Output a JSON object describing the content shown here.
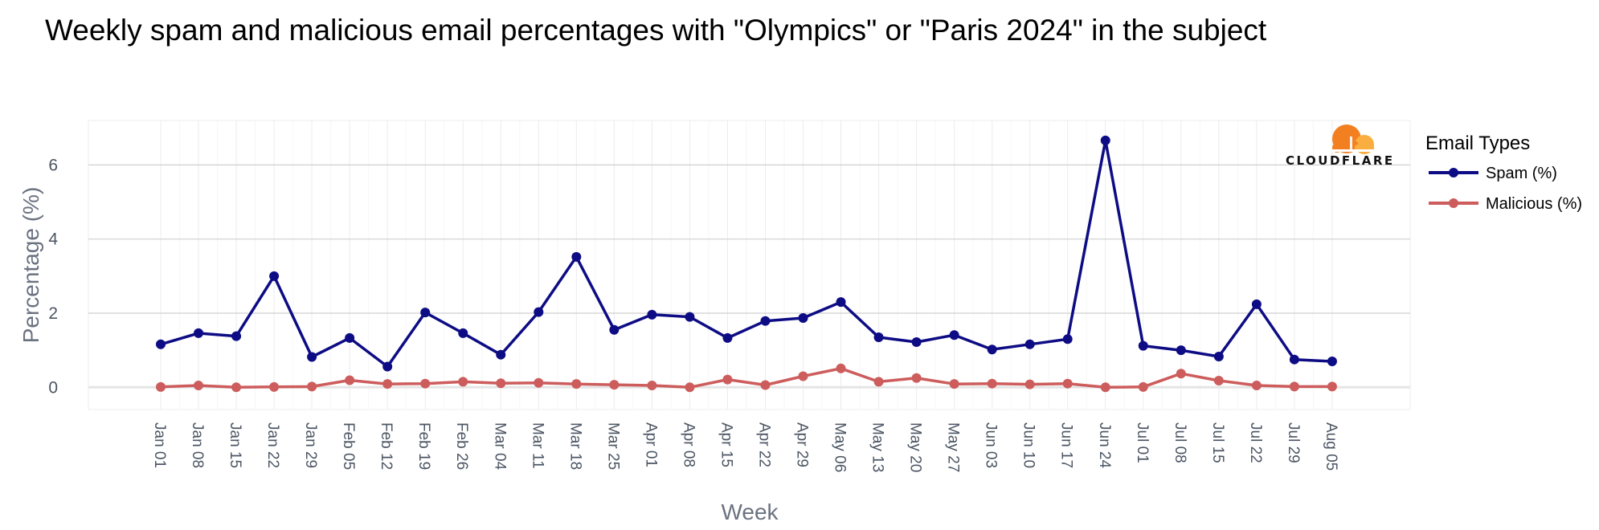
{
  "brand": {
    "logo_text": "CLOUDFLARE",
    "logo_color_primary": "#f38020",
    "logo_color_secondary": "#faae40"
  },
  "chart_data": {
    "type": "line",
    "title": "Weekly spam and malicious email percentages with \"Olympics\" or \"Paris 2024\" in the subject",
    "xlabel": "Week",
    "ylabel": "Percentage (%)",
    "ylim": [
      -0.6,
      7.2
    ],
    "yticks": [
      0,
      2,
      4,
      6
    ],
    "grid": true,
    "legend": {
      "title": "Email Types",
      "placement": "right"
    },
    "categories": [
      "Jan 01",
      "Jan 08",
      "Jan 15",
      "Jan 22",
      "Jan 29",
      "Feb 05",
      "Feb 12",
      "Feb 19",
      "Feb 26",
      "Mar 04",
      "Mar 11",
      "Mar 18",
      "Mar 25",
      "Apr 01",
      "Apr 08",
      "Apr 15",
      "Apr 22",
      "Apr 29",
      "May 06",
      "May 13",
      "May 20",
      "May 27",
      "Jun 03",
      "Jun 10",
      "Jun 17",
      "Jun 24",
      "Jul 01",
      "Jul 08",
      "Jul 15",
      "Jul 22",
      "Jul 29",
      "Aug 05"
    ],
    "series": [
      {
        "name": "Spam (%)",
        "color": "#0d0c84",
        "values": [
          1.16,
          1.46,
          1.38,
          3.0,
          0.82,
          1.33,
          0.56,
          2.02,
          1.46,
          0.88,
          2.03,
          3.52,
          1.55,
          1.96,
          1.9,
          1.33,
          1.79,
          1.87,
          2.3,
          1.35,
          1.22,
          1.41,
          1.02,
          1.16,
          1.3,
          6.66,
          1.12,
          1.0,
          0.83,
          2.24,
          0.75,
          0.7
        ]
      },
      {
        "name": "Malicious (%)",
        "color": "#cd5c5c",
        "values": [
          0.01,
          0.05,
          0.0,
          0.01,
          0.02,
          0.19,
          0.09,
          0.1,
          0.15,
          0.11,
          0.12,
          0.09,
          0.07,
          0.05,
          0.0,
          0.21,
          0.06,
          0.3,
          0.51,
          0.15,
          0.25,
          0.09,
          0.1,
          0.08,
          0.1,
          0.0,
          0.01,
          0.37,
          0.18,
          0.05,
          0.02,
          0.02
        ]
      }
    ]
  }
}
